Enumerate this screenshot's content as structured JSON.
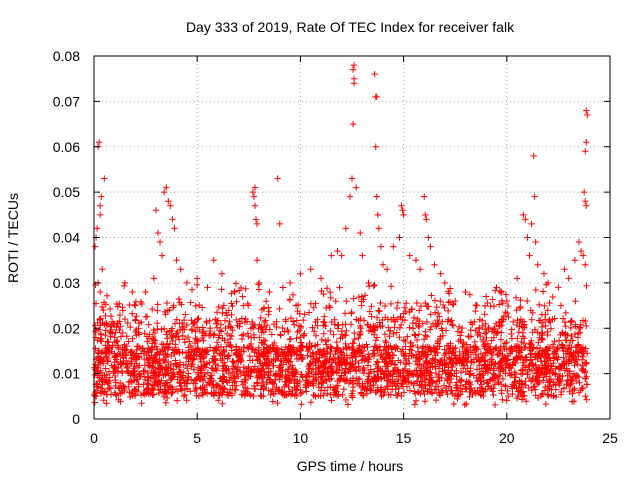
{
  "chart_data": {
    "type": "scatter",
    "title": "Day 333 of 2019, Rate Of TEC Index for receiver falk",
    "xlabel": "GPS time / hours",
    "ylabel": "ROTI / TECUs",
    "xlim": [
      0,
      25
    ],
    "ylim": [
      0,
      0.08
    ],
    "x_ticks": [
      "0",
      "5",
      "10",
      "15",
      "20",
      "25"
    ],
    "y_ticks": [
      "0",
      "0.01",
      "0.02",
      "0.03",
      "0.04",
      "0.05",
      "0.06",
      "0.07",
      "0.08"
    ],
    "grid": true,
    "marker": "+",
    "color": "#ff0000",
    "series": [
      {
        "points": [
          [
            0.05,
            0.038
          ],
          [
            0.1,
            0.04
          ],
          [
            0.15,
            0.042
          ],
          [
            0.2,
            0.03
          ],
          [
            0.25,
            0.061
          ],
          [
            0.2,
            0.06
          ],
          [
            0.3,
            0.047
          ],
          [
            0.35,
            0.049
          ],
          [
            0.3,
            0.045
          ],
          [
            0.4,
            0.033
          ],
          [
            0.45,
            0.024
          ],
          [
            0.5,
            0.053
          ],
          [
            0.3,
            0.028
          ],
          [
            0.6,
            0.021
          ],
          [
            0.8,
            0.019
          ],
          [
            1.0,
            0.018
          ],
          [
            1.5,
            0.022
          ],
          [
            2.0,
            0.025
          ],
          [
            2.5,
            0.028
          ],
          [
            2.9,
            0.031
          ],
          [
            3.0,
            0.046
          ],
          [
            3.1,
            0.041
          ],
          [
            3.2,
            0.039
          ],
          [
            3.3,
            0.036
          ],
          [
            3.4,
            0.05
          ],
          [
            3.5,
            0.051
          ],
          [
            3.6,
            0.048
          ],
          [
            3.7,
            0.047
          ],
          [
            3.8,
            0.044
          ],
          [
            3.9,
            0.042
          ],
          [
            4.0,
            0.035
          ],
          [
            4.2,
            0.033
          ],
          [
            4.5,
            0.03
          ],
          [
            5.0,
            0.031
          ],
          [
            5.5,
            0.029
          ],
          [
            5.8,
            0.035
          ],
          [
            6.2,
            0.032
          ],
          [
            6.8,
            0.028
          ],
          [
            7.2,
            0.027
          ],
          [
            7.7,
            0.05
          ],
          [
            7.75,
            0.049
          ],
          [
            7.8,
            0.047
          ],
          [
            7.85,
            0.044
          ],
          [
            7.9,
            0.043
          ],
          [
            7.8,
            0.051
          ],
          [
            7.9,
            0.035
          ],
          [
            8.0,
            0.03
          ],
          [
            8.5,
            0.028
          ],
          [
            8.9,
            0.053
          ],
          [
            9.0,
            0.043
          ],
          [
            9.5,
            0.03
          ],
          [
            10.0,
            0.032
          ],
          [
            10.5,
            0.033
          ],
          [
            11.0,
            0.031
          ],
          [
            11.5,
            0.036
          ],
          [
            11.8,
            0.037
          ],
          [
            12.0,
            0.036
          ],
          [
            12.2,
            0.042
          ],
          [
            12.4,
            0.049
          ],
          [
            12.5,
            0.053
          ],
          [
            12.55,
            0.065
          ],
          [
            12.6,
            0.078
          ],
          [
            12.55,
            0.077
          ],
          [
            12.6,
            0.075
          ],
          [
            12.6,
            0.074
          ],
          [
            12.7,
            0.051
          ],
          [
            12.9,
            0.041
          ],
          [
            13.0,
            0.036
          ],
          [
            13.3,
            0.03
          ],
          [
            13.6,
            0.076
          ],
          [
            13.65,
            0.071
          ],
          [
            13.7,
            0.071
          ],
          [
            13.65,
            0.06
          ],
          [
            13.7,
            0.049
          ],
          [
            13.75,
            0.045
          ],
          [
            13.8,
            0.042
          ],
          [
            13.9,
            0.038
          ],
          [
            14.0,
            0.034
          ],
          [
            14.2,
            0.033
          ],
          [
            14.5,
            0.038
          ],
          [
            14.8,
            0.04
          ],
          [
            14.9,
            0.047
          ],
          [
            14.95,
            0.046
          ],
          [
            15.0,
            0.045
          ],
          [
            15.3,
            0.036
          ],
          [
            15.6,
            0.035
          ],
          [
            15.8,
            0.033
          ],
          [
            16.0,
            0.049
          ],
          [
            16.05,
            0.045
          ],
          [
            16.1,
            0.044
          ],
          [
            16.2,
            0.04
          ],
          [
            16.3,
            0.038
          ],
          [
            16.5,
            0.034
          ],
          [
            16.8,
            0.032
          ],
          [
            17.0,
            0.03
          ],
          [
            17.5,
            0.026
          ],
          [
            18.0,
            0.028
          ],
          [
            18.5,
            0.025
          ],
          [
            19.0,
            0.027
          ],
          [
            19.5,
            0.029
          ],
          [
            20.0,
            0.026
          ],
          [
            20.5,
            0.031
          ],
          [
            20.8,
            0.045
          ],
          [
            20.9,
            0.044
          ],
          [
            21.0,
            0.04
          ],
          [
            21.1,
            0.036
          ],
          [
            21.2,
            0.043
          ],
          [
            21.3,
            0.058
          ],
          [
            21.35,
            0.049
          ],
          [
            21.4,
            0.039
          ],
          [
            21.5,
            0.034
          ],
          [
            21.8,
            0.032
          ],
          [
            22.0,
            0.03
          ],
          [
            22.5,
            0.029
          ],
          [
            22.8,
            0.033
          ],
          [
            23.0,
            0.031
          ],
          [
            23.3,
            0.035
          ],
          [
            23.5,
            0.039
          ],
          [
            23.6,
            0.037
          ],
          [
            23.75,
            0.05
          ],
          [
            23.8,
            0.048
          ],
          [
            23.85,
            0.047
          ],
          [
            23.8,
            0.059
          ],
          [
            23.85,
            0.061
          ],
          [
            23.9,
            0.067
          ],
          [
            23.85,
            0.068
          ],
          [
            23.7,
            0.036
          ],
          [
            23.8,
            0.034
          ]
        ],
        "dense_band": {
          "x_range": [
            0,
            23.9
          ],
          "y_typical": [
            0.004,
            0.025
          ]
        }
      }
    ]
  }
}
